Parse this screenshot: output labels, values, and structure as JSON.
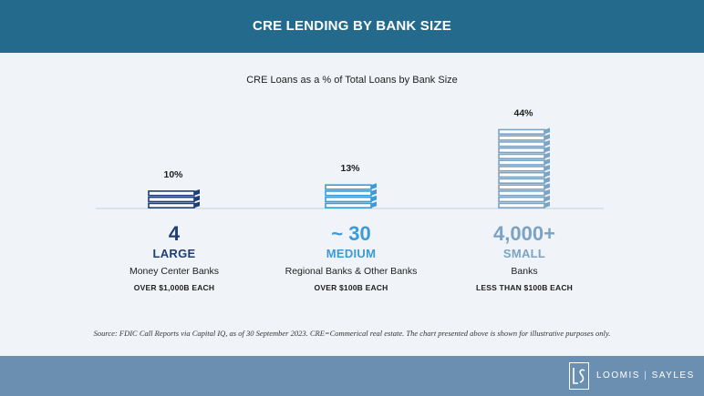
{
  "header": {
    "title": "CRE LENDING BY BANK SIZE"
  },
  "colors": {
    "header_bg": "#236a8c",
    "footer_bg": "#6a8fb1",
    "large": "#1e3f73",
    "medium": "#3c9bd6",
    "small": "#7aa3c4"
  },
  "chart_data": {
    "type": "bar",
    "title": "CRE Loans as a % of Total Loans by Bank Size",
    "categories": [
      "LARGE",
      "MEDIUM",
      "SMALL"
    ],
    "values": [
      10,
      13,
      44
    ],
    "value_labels": [
      "10%",
      "13%",
      "44%"
    ],
    "unit": "%",
    "grid": false,
    "legend": "none"
  },
  "groups": [
    {
      "count": "4",
      "size": "LARGE",
      "desc": "Money Center Banks",
      "threshold": "OVER $1,000B  EACH",
      "color": "#1e3f73"
    },
    {
      "count": "~ 30",
      "size": "MEDIUM",
      "desc": "Regional Banks & Other Banks",
      "threshold": "OVER $100B  EACH",
      "color": "#3c9bd6"
    },
    {
      "count": "4,000+",
      "size": "SMALL",
      "desc": "Banks",
      "threshold": "LESS THAN $100B  EACH",
      "color": "#7aa3c4"
    }
  ],
  "source": "Source: FDIC Call Reports via Capital IQ, as of 30 September 2023. CRE=Commerical real estate. The chart presented above is shown for illustrative purposes only.",
  "logo": {
    "icon": "ls-monogram-icon",
    "left": "LOOMIS",
    "sep": "|",
    "right": "SAYLES"
  }
}
